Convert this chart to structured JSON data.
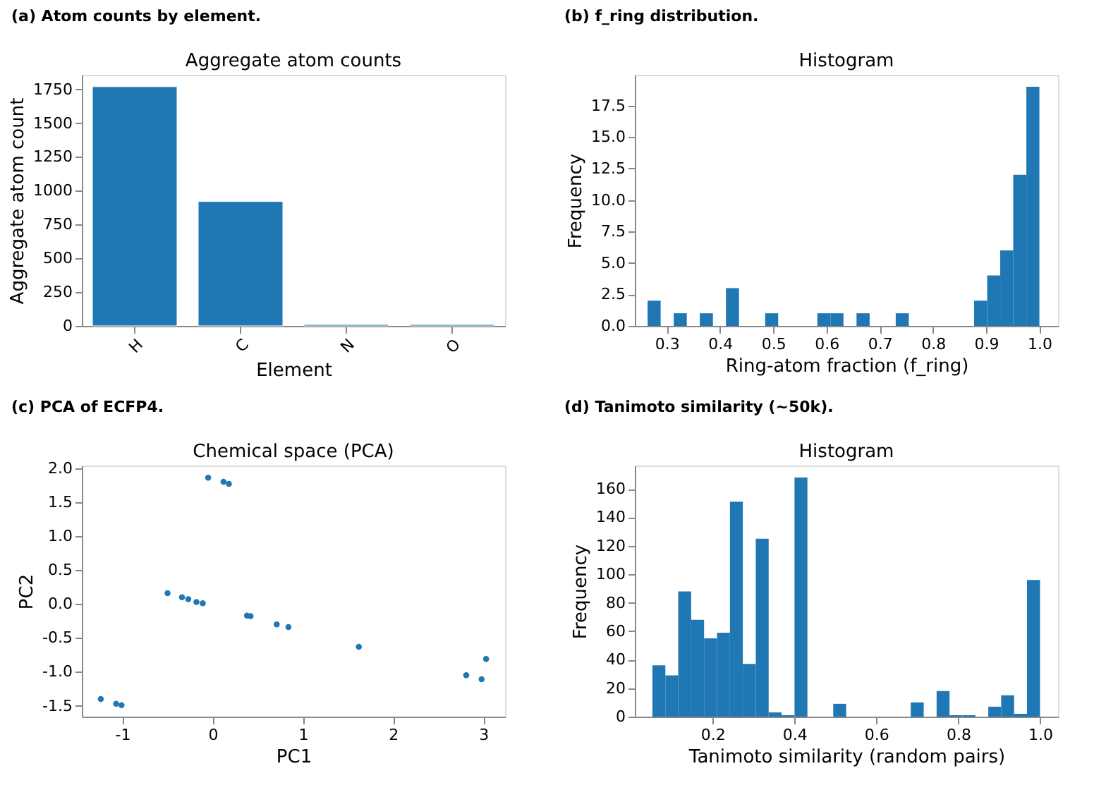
{
  "chart_data": [
    {
      "type": "bar",
      "title": "(a) Atom counts by element.",
      "subtitle": "Aggregate atom counts",
      "xlabel": "Element",
      "ylabel": "Aggregate atom count",
      "categories": [
        "H",
        "C",
        "N",
        "O"
      ],
      "values": [
        1770,
        920,
        10,
        10
      ],
      "color": "#1f77b4",
      "ylim": [
        0,
        1858
      ],
      "yticks": [
        0,
        250,
        500,
        750,
        1000,
        1250,
        1500,
        1750
      ]
    },
    {
      "type": "histogram",
      "title": "(b) f_ring distribution.",
      "subtitle": "Histogram",
      "xlabel": "Ring-atom fraction (f_ring)",
      "ylabel": "Frequency",
      "bins": [
        0.264,
        0.2885,
        0.3131,
        0.3376,
        0.3621,
        0.3867,
        0.4112,
        0.4357,
        0.4603,
        0.4848,
        0.5093,
        0.5339,
        0.5584,
        0.5829,
        0.6075,
        0.632,
        0.6565,
        0.6811,
        0.7056,
        0.7301,
        0.7547,
        0.7792,
        0.8037,
        0.8283,
        0.8528,
        0.8773,
        0.9019,
        0.9264,
        0.9509,
        0.9755,
        1.0
      ],
      "values": [
        2,
        0,
        1,
        0,
        1,
        0,
        3,
        0,
        0,
        1,
        0,
        0,
        0,
        1,
        1,
        0,
        1,
        0,
        0,
        1,
        0,
        0,
        0,
        0,
        0,
        2,
        4,
        6,
        12,
        19
      ],
      "color": "#1f77b4",
      "xlim": [
        0.24,
        1.035
      ],
      "xticks": [
        0.3,
        0.4,
        0.5,
        0.6,
        0.7,
        0.8,
        0.9,
        {
          "value": 1,
          "label": "1.0"
        }
      ],
      "ylim": [
        0,
        19.95
      ],
      "yticks": [
        {
          "value": 0,
          "label": "0.0"
        },
        2.5,
        {
          "value": 5,
          "label": "5.0"
        },
        7.5,
        {
          "value": 10,
          "label": "10.0"
        },
        12.5,
        {
          "value": 15,
          "label": "15.0"
        },
        17.5
      ]
    },
    {
      "type": "scatter",
      "title": "(c) PCA of ECFP4.",
      "subtitle": "Chemical space (PCA)",
      "xlabel": "PC1",
      "ylabel": "PC2",
      "x": [
        -0.05,
        0.12,
        0.18,
        -0.5,
        -0.34,
        -0.27,
        -0.18,
        -0.11,
        0.38,
        0.42,
        0.71,
        0.84,
        1.62,
        2.81,
        2.98,
        3.03,
        -1.24,
        -1.07,
        -1.01
      ],
      "values": [
        1.86,
        1.8,
        1.77,
        0.16,
        0.1,
        0.07,
        0.03,
        0.01,
        -0.17,
        -0.18,
        -0.3,
        -0.34,
        -0.63,
        -1.05,
        -1.11,
        -0.81,
        -1.4,
        -1.47,
        -1.49
      ],
      "color": "#1f77b4",
      "marker": "circle",
      "xlim": [
        -1.45,
        3.24
      ],
      "xticks": [
        -1,
        0,
        1,
        2,
        3
      ],
      "ylim": [
        -1.66,
        2.04
      ],
      "yticks": [
        -1.5,
        {
          "value": -1,
          "label": "-1.0"
        },
        -0.5,
        {
          "value": 0,
          "label": "0.0"
        },
        0.5,
        {
          "value": 1,
          "label": "1.0"
        },
        1.5,
        {
          "value": 2,
          "label": "2.0"
        }
      ]
    },
    {
      "type": "histogram",
      "title": "(d) Tanimoto similarity (~50k).",
      "subtitle": "Histogram",
      "xlabel": "Tanimoto similarity (random pairs)",
      "ylabel": "Frequency",
      "bins": [
        0.053,
        0.0846,
        0.1161,
        0.1477,
        0.1792,
        0.2108,
        0.2424,
        0.2739,
        0.3055,
        0.337,
        0.3686,
        0.4002,
        0.4317,
        0.4633,
        0.4948,
        0.5264,
        0.558,
        0.5895,
        0.6211,
        0.6526,
        0.6842,
        0.7158,
        0.7473,
        0.7789,
        0.8104,
        0.842,
        0.8736,
        0.9051,
        0.9367,
        0.9682,
        1.0
      ],
      "values": [
        36,
        29,
        88,
        68,
        55,
        59,
        151,
        37,
        125,
        3,
        1,
        168,
        0,
        0,
        9,
        0,
        0,
        0,
        0,
        0,
        10,
        0,
        18,
        1,
        1,
        0,
        7,
        15,
        2,
        96
      ],
      "color": "#1f77b4",
      "xlim": [
        0.01,
        1.044
      ],
      "xticks": [
        0.2,
        0.4,
        0.6,
        0.8,
        {
          "value": 1,
          "label": "1.0"
        }
      ],
      "ylim": [
        0,
        176.4
      ],
      "yticks": [
        0,
        20,
        40,
        60,
        80,
        100,
        120,
        140,
        160
      ]
    }
  ]
}
